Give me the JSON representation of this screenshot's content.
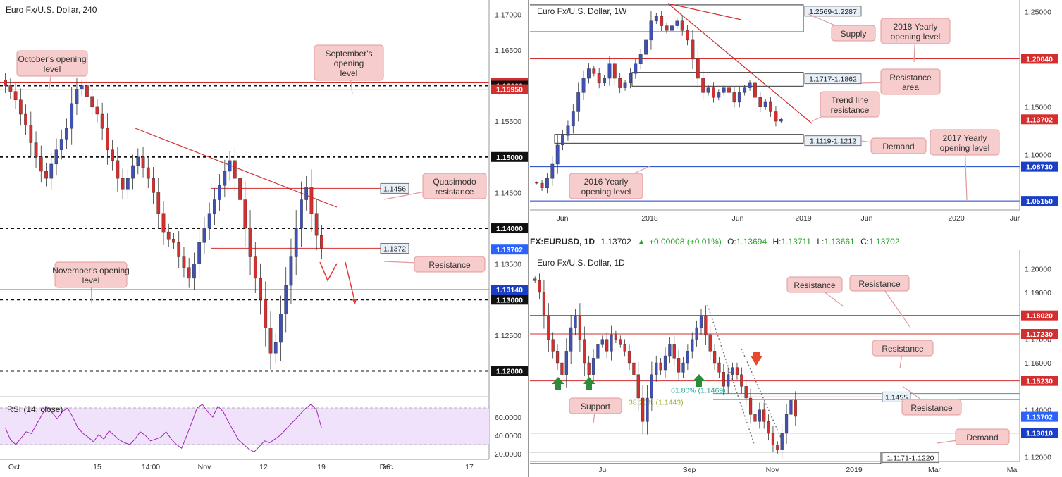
{
  "chart_data": [
    {
      "type": "candlestick",
      "title": "Euro Fx/U.S. Dollar, 240",
      "ylim": [
        1.1165,
        1.172
      ],
      "x_ticks": [
        "Oct",
        "15",
        "14:00",
        "Nov",
        "12",
        "19",
        "26",
        "Dec",
        "17"
      ],
      "y_ticks": [
        "1.17000",
        "1.16500",
        "1.15500",
        "1.14500",
        "1.13500",
        "1.12500"
      ],
      "price_tags": [
        {
          "label": "1.16040",
          "value": 1.1604,
          "color": "#d32f2f",
          "style": "solid"
        },
        {
          "label": "1.16000",
          "value": 1.16,
          "color": "#111111",
          "style": "dotted"
        },
        {
          "label": "1.15950",
          "value": 1.1595,
          "color": "#d32f2f",
          "style": "solid"
        },
        {
          "label": "1.15000",
          "value": 1.15,
          "color": "#111111",
          "style": "dotted"
        },
        {
          "label": "1.14000",
          "value": 1.14,
          "color": "#111111",
          "style": "dotted"
        },
        {
          "label": "1.13702",
          "value": 1.13702,
          "color": "#2962ff",
          "style": "none"
        },
        {
          "label": "1.13140",
          "value": 1.1314,
          "color": "#1a3fc4",
          "style": "solid"
        },
        {
          "label": "1.13000",
          "value": 1.13,
          "color": "#111111",
          "style": "dotted"
        },
        {
          "label": "1.12000",
          "value": 1.12,
          "color": "#111111",
          "style": "dotted"
        }
      ],
      "level_boxes": [
        {
          "label": "1.1456",
          "value": 1.1456
        },
        {
          "label": "1.1372",
          "value": 1.1372
        }
      ],
      "callouts": [
        {
          "text": "October's opening level"
        },
        {
          "text": "September's opening level"
        },
        {
          "text": "Quasimodo resistance"
        },
        {
          "text": "Resistance"
        },
        {
          "text": "November's opening level"
        }
      ],
      "rsi": {
        "label": "RSI (14, close)",
        "ylim": [
          20,
          80
        ],
        "ticks": [
          "60.0000",
          "40.0000",
          "20.0000"
        ],
        "bands": [
          70,
          30
        ],
        "values": [
          48,
          35,
          30,
          37,
          44,
          42,
          52,
          62,
          72,
          65,
          58,
          66,
          70,
          60,
          48,
          42,
          38,
          33,
          41,
          36,
          45,
          40,
          35,
          32,
          30,
          36,
          44,
          40,
          34,
          36,
          38,
          44,
          36,
          30,
          26,
          40,
          55,
          70,
          74,
          66,
          60,
          72,
          66,
          55,
          45,
          35,
          30,
          25,
          22,
          28,
          34,
          32,
          36,
          40,
          46,
          52,
          58,
          64,
          70,
          74,
          68,
          48
        ]
      },
      "prices": [
        1.16,
        1.1592,
        1.158,
        1.156,
        1.1545,
        1.152,
        1.15,
        1.148,
        1.147,
        1.149,
        1.151,
        1.1525,
        1.154,
        1.1575,
        1.1595,
        1.16,
        1.1585,
        1.157,
        1.156,
        1.154,
        1.151,
        1.1495,
        1.147,
        1.1455,
        1.147,
        1.1488,
        1.15,
        1.1485,
        1.147,
        1.145,
        1.142,
        1.1395,
        1.1385,
        1.138,
        1.136,
        1.1345,
        1.133,
        1.135,
        1.138,
        1.14,
        1.142,
        1.144,
        1.146,
        1.148,
        1.1495,
        1.147,
        1.144,
        1.14,
        1.136,
        1.133,
        1.13,
        1.126,
        1.1225,
        1.124,
        1.128,
        1.132,
        1.136,
        1.14,
        1.144,
        1.1458,
        1.142,
        1.139,
        1.1372
      ]
    },
    {
      "type": "candlestick",
      "title": "Euro Fx/U.S. Dollar, 1W",
      "ylim": [
        1.042,
        1.262
      ],
      "x_ticks": [
        "Jun",
        "2018",
        "Jun",
        "2019",
        "Jun",
        "2020",
        "Jur"
      ],
      "y_ticks": [
        "1.25000",
        "1.15000",
        "1.10000"
      ],
      "price_tags": [
        {
          "label": "1.20040",
          "value": 1.2004,
          "color": "#d32f2f",
          "style": "solid"
        },
        {
          "label": "1.13702",
          "value": 1.13702,
          "color": "#d32f2f",
          "style": "none"
        },
        {
          "label": "1.08730",
          "value": 1.0873,
          "color": "#1a3fc4",
          "style": "solid"
        },
        {
          "label": "1.05150",
          "value": 1.0515,
          "color": "#1a3fc4",
          "style": "solid"
        }
      ],
      "zones": [
        {
          "label": "1.2569-1.2287",
          "top": 1.2569,
          "bottom": 1.2287
        },
        {
          "label": "1.1717-1.1862",
          "top": 1.1862,
          "bottom": 1.1717
        },
        {
          "label": "1.1119-1.1212",
          "top": 1.1212,
          "bottom": 1.1119
        }
      ],
      "callouts": [
        {
          "text": "Supply"
        },
        {
          "text": "2018 Yearly opening level"
        },
        {
          "text": "Resistance area"
        },
        {
          "text": "Trend line resistance"
        },
        {
          "text": "Demand"
        },
        {
          "text": "2017 Yearly opening level"
        },
        {
          "text": "2016 Yearly opening level"
        }
      ],
      "prices": [
        1.07,
        1.065,
        1.075,
        1.09,
        1.11,
        1.12,
        1.13,
        1.145,
        1.165,
        1.18,
        1.19,
        1.185,
        1.175,
        1.18,
        1.195,
        1.18,
        1.17,
        1.175,
        1.185,
        1.195,
        1.205,
        1.22,
        1.24,
        1.245,
        1.235,
        1.23,
        1.235,
        1.24,
        1.23,
        1.22,
        1.2,
        1.18,
        1.165,
        1.17,
        1.16,
        1.165,
        1.17,
        1.165,
        1.155,
        1.165,
        1.17,
        1.175,
        1.16,
        1.15,
        1.155,
        1.145,
        1.135,
        1.137
      ]
    },
    {
      "type": "candlestick",
      "title": "Euro Fx/U.S. Dollar, 1D",
      "ylim": [
        1.118,
        1.208
      ],
      "x_ticks": [
        "Jul",
        "Sep",
        "Nov",
        "2019",
        "Mar",
        "Ma"
      ],
      "y_ticks": [
        "1.20000",
        "1.19000",
        "1.17000",
        "1.16000",
        "1.14000",
        "1.12000"
      ],
      "price_tags": [
        {
          "label": "1.18020",
          "value": 1.1802,
          "color": "#d32f2f",
          "style": "solid"
        },
        {
          "label": "1.17230",
          "value": 1.1723,
          "color": "#d32f2f",
          "style": "solid"
        },
        {
          "label": "1.15230",
          "value": 1.1523,
          "color": "#d32f2f",
          "style": "solid"
        },
        {
          "label": "1.13702",
          "value": 1.13702,
          "color": "#2962ff",
          "style": "none"
        },
        {
          "label": "1.13010",
          "value": 1.1301,
          "color": "#1a3fc4",
          "style": "solid"
        }
      ],
      "level_boxes": [
        {
          "label": "1.1455",
          "value": 1.1455
        }
      ],
      "zones": [
        {
          "label": "1.1171-1.1220",
          "top": 1.122,
          "bottom": 1.1171
        }
      ],
      "fib": [
        {
          "label": "61.80% (1.1469)",
          "value": 1.1469,
          "color": "#26a69a"
        },
        {
          "label": "38.20% (1.1443)",
          "value": 1.1443,
          "color": "#9bbb2b"
        }
      ],
      "callouts": [
        {
          "text": "Resistance"
        },
        {
          "text": "Resistance"
        },
        {
          "text": "Resistance"
        },
        {
          "text": "Resistance"
        },
        {
          "text": "Support"
        },
        {
          "text": "Demand"
        }
      ],
      "prices": [
        1.195,
        1.19,
        1.18,
        1.17,
        1.165,
        1.16,
        1.155,
        1.165,
        1.175,
        1.18,
        1.17,
        1.16,
        1.155,
        1.162,
        1.168,
        1.17,
        1.165,
        1.172,
        1.17,
        1.168,
        1.165,
        1.16,
        1.155,
        1.145,
        1.135,
        1.145,
        1.155,
        1.16,
        1.157,
        1.163,
        1.168,
        1.162,
        1.156,
        1.16,
        1.165,
        1.17,
        1.175,
        1.18,
        1.172,
        1.165,
        1.16,
        1.156,
        1.15,
        1.155,
        1.158,
        1.155,
        1.15,
        1.145,
        1.138,
        1.135,
        1.14,
        1.135,
        1.13,
        1.125,
        1.123,
        1.13,
        1.138,
        1.144,
        1.1372
      ]
    }
  ],
  "quote": {
    "symbol": "FX:EURUSD, 1D",
    "price": "1.13702",
    "change": "+0.00008 (+0.01%)",
    "o_label": "O:",
    "o": "1.13694",
    "h_label": "H:",
    "h": "1.13711",
    "l_label": "L:",
    "l": "1.13661",
    "c_label": "C:",
    "c": "1.13702"
  },
  "colors": {
    "bull": "#3f51b5",
    "bear": "#d32f2f",
    "callout_fill": "#f6cccc",
    "callout_stroke": "#e09a9a",
    "rsi_fill": "#f1e2fb",
    "rsi_line": "#9c27b0"
  },
  "arrow_icons": [
    "green-up-arrow-icon",
    "red-down-arrow-icon",
    "red-arrow-icon"
  ]
}
